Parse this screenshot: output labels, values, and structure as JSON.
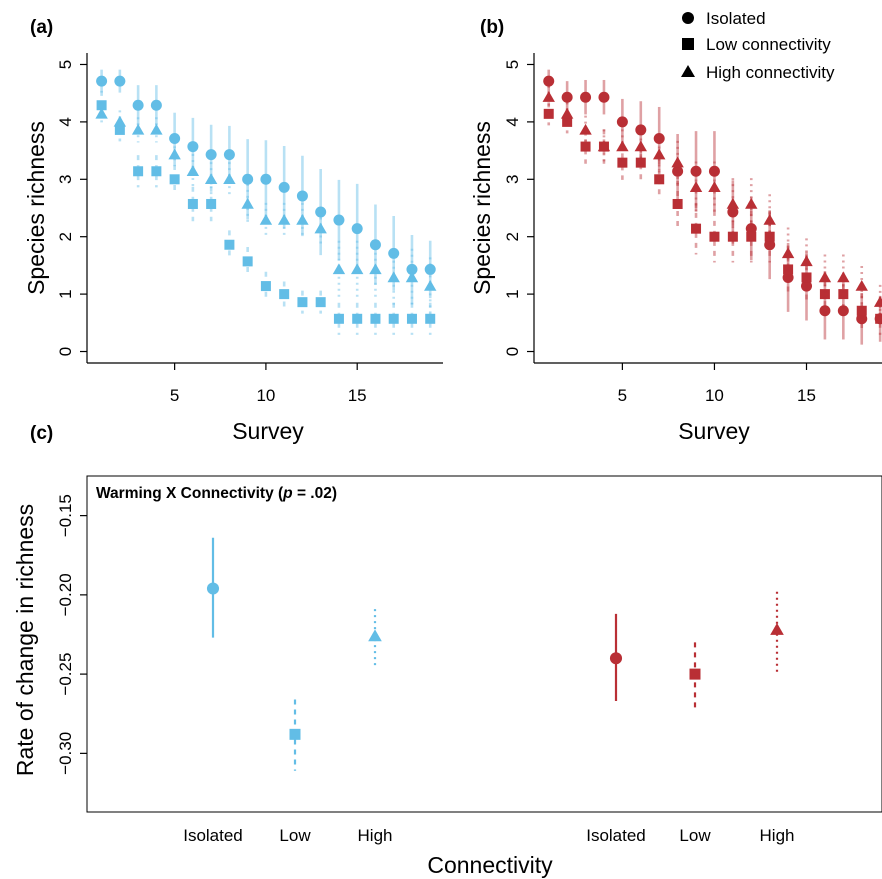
{
  "colors": {
    "ambient": "#62bde6",
    "warming": "#b92f35"
  },
  "legend": [
    {
      "label": "Isolated",
      "marker": "circle"
    },
    {
      "label": "Low connectivity",
      "marker": "square"
    },
    {
      "label": "High connectivity",
      "marker": "triangle"
    }
  ],
  "chart_data": [
    {
      "panel": "(a)",
      "type": "scatter",
      "xlabel": "Survey",
      "ylabel": "Species richness",
      "xticks": [
        5,
        10,
        15
      ],
      "yticks": [
        0,
        1,
        2,
        3,
        4,
        5
      ],
      "xlim": [
        0.2,
        19.7
      ],
      "ylim": [
        -0.2,
        5.2
      ],
      "series": [
        {
          "name": "Isolated",
          "marker": "circle",
          "line": "solid",
          "x": [
            1,
            2,
            3,
            4,
            5,
            6,
            7,
            8,
            9,
            10,
            11,
            12,
            13,
            14,
            15,
            16,
            17,
            18,
            19
          ],
          "y": [
            4.71,
            4.71,
            4.29,
            4.29,
            3.71,
            3.57,
            3.43,
            3.43,
            3.0,
            3.0,
            2.86,
            2.71,
            2.43,
            2.29,
            2.14,
            1.86,
            1.71,
            1.43,
            1.43
          ],
          "err": [
            0.2,
            0.2,
            0.35,
            0.35,
            0.45,
            0.5,
            0.52,
            0.5,
            0.7,
            0.68,
            0.72,
            0.7,
            0.75,
            0.7,
            0.78,
            0.7,
            0.65,
            0.6,
            0.5
          ]
        },
        {
          "name": "Low connectivity",
          "marker": "square",
          "line": "dashed",
          "x": [
            1,
            2,
            3,
            4,
            5,
            6,
            7,
            8,
            9,
            10,
            11,
            12,
            13,
            14,
            15,
            16,
            17,
            18,
            19
          ],
          "y": [
            4.29,
            3.86,
            3.14,
            3.14,
            3.0,
            2.57,
            2.57,
            1.86,
            1.57,
            1.14,
            1.0,
            0.86,
            0.86,
            0.57,
            0.57,
            0.57,
            0.57,
            0.57,
            0.57
          ],
          "err": [
            0.25,
            0.2,
            0.28,
            0.28,
            0.25,
            0.3,
            0.3,
            0.25,
            0.25,
            0.25,
            0.22,
            0.2,
            0.2,
            0.28,
            0.28,
            0.28,
            0.28,
            0.28,
            0.28
          ]
        },
        {
          "name": "High connectivity",
          "marker": "triangle",
          "line": "dotted",
          "x": [
            1,
            2,
            3,
            4,
            5,
            6,
            7,
            8,
            9,
            10,
            11,
            12,
            13,
            14,
            15,
            16,
            17,
            18,
            19
          ],
          "y": [
            4.14,
            4.0,
            3.86,
            3.86,
            3.43,
            3.14,
            3.0,
            3.0,
            2.57,
            2.29,
            2.29,
            2.29,
            2.14,
            1.43,
            1.43,
            1.43,
            1.29,
            1.29,
            1.14
          ],
          "err": [
            0.2,
            0.2,
            0.22,
            0.22,
            0.25,
            0.3,
            0.3,
            0.3,
            0.35,
            0.3,
            0.3,
            0.3,
            0.3,
            0.5,
            0.5,
            0.5,
            0.5,
            0.5,
            0.5
          ]
        }
      ]
    },
    {
      "panel": "(b)",
      "type": "scatter",
      "xlabel": "Survey",
      "ylabel": "Species richness",
      "xticks": [
        5,
        10,
        15
      ],
      "yticks": [
        0,
        1,
        2,
        3,
        4,
        5
      ],
      "xlim": [
        0.2,
        19.1
      ],
      "ylim": [
        -0.2,
        5.2
      ],
      "series": [
        {
          "name": "Isolated",
          "marker": "circle",
          "line": "solid",
          "x": [
            1,
            2,
            3,
            4,
            5,
            6,
            7,
            8,
            9,
            10,
            11,
            12,
            13,
            14,
            15,
            16,
            17,
            18,
            19
          ],
          "y": [
            4.71,
            4.43,
            4.43,
            4.43,
            4.0,
            3.86,
            3.71,
            3.14,
            3.14,
            3.14,
            2.43,
            2.14,
            1.86,
            1.29,
            1.14,
            0.71,
            0.71,
            0.57,
            0.57
          ],
          "err": [
            0.2,
            0.28,
            0.3,
            0.3,
            0.4,
            0.5,
            0.55,
            0.65,
            0.7,
            0.7,
            0.55,
            0.55,
            0.6,
            0.6,
            0.6,
            0.5,
            0.5,
            0.45,
            0.4
          ]
        },
        {
          "name": "Low connectivity",
          "marker": "square",
          "line": "dashed",
          "x": [
            1,
            2,
            3,
            4,
            5,
            6,
            7,
            8,
            9,
            10,
            11,
            12,
            13,
            14,
            15,
            16,
            17,
            18,
            19
          ],
          "y": [
            4.14,
            4.0,
            3.57,
            3.57,
            3.29,
            3.29,
            3.0,
            2.57,
            2.14,
            2.0,
            2.0,
            2.0,
            2.0,
            1.43,
            1.29,
            1.0,
            1.0,
            0.71,
            0.57
          ],
          "err": [
            0.2,
            0.2,
            0.3,
            0.3,
            0.3,
            0.32,
            0.35,
            0.4,
            0.45,
            0.45,
            0.45,
            0.45,
            0.45,
            0.4,
            0.4,
            0.4,
            0.35,
            0.3,
            0.28
          ]
        },
        {
          "name": "High connectivity",
          "marker": "triangle",
          "line": "dotted",
          "x": [
            1,
            2,
            3,
            4,
            5,
            6,
            7,
            8,
            9,
            10,
            11,
            12,
            13,
            14,
            15,
            16,
            17,
            18,
            19
          ],
          "y": [
            4.43,
            4.14,
            3.86,
            3.57,
            3.57,
            3.57,
            3.43,
            3.29,
            2.86,
            2.86,
            2.57,
            2.57,
            2.29,
            1.71,
            1.57,
            1.29,
            1.29,
            1.14,
            0.86
          ],
          "err": [
            0.2,
            0.2,
            0.25,
            0.3,
            0.3,
            0.35,
            0.35,
            0.38,
            0.45,
            0.45,
            0.45,
            0.45,
            0.45,
            0.45,
            0.4,
            0.4,
            0.4,
            0.35,
            0.3
          ]
        }
      ]
    },
    {
      "panel": "(c)",
      "type": "scatter",
      "xlabel": "Connectivity",
      "ylabel": "Rate of change in richness",
      "annotation": {
        "prefix": "Warming X Connectivity (",
        "italic": "p",
        "suffix": " = .02)"
      },
      "yticks": [
        -0.3,
        -0.25,
        -0.2,
        -0.15
      ],
      "ytick_labels": [
        "−0.30",
        "−0.25",
        "−0.20",
        "−0.15"
      ],
      "ylim": [
        -0.337,
        -0.125
      ],
      "categories": [
        "Isolated",
        "Low",
        "High",
        "Isolated",
        "Low",
        "High"
      ],
      "points": [
        {
          "category": "Isolated",
          "treatment": "ambient",
          "marker": "circle",
          "line": "solid",
          "y": -0.196,
          "lo": -0.227,
          "hi": -0.164
        },
        {
          "category": "Low",
          "treatment": "ambient",
          "marker": "square",
          "line": "dashed",
          "y": -0.288,
          "lo": -0.311,
          "hi": -0.266
        },
        {
          "category": "High",
          "treatment": "ambient",
          "marker": "triangle",
          "line": "dotted",
          "y": -0.226,
          "lo": -0.245,
          "hi": -0.209
        },
        {
          "category": "Isolated",
          "treatment": "warming",
          "marker": "circle",
          "line": "solid",
          "y": -0.24,
          "lo": -0.267,
          "hi": -0.212
        },
        {
          "category": "Low",
          "treatment": "warming",
          "marker": "square",
          "line": "dashed",
          "y": -0.25,
          "lo": -0.274,
          "hi": -0.23
        },
        {
          "category": "High",
          "treatment": "warming",
          "marker": "triangle",
          "line": "dotted",
          "y": -0.222,
          "lo": -0.249,
          "hi": -0.198
        }
      ]
    }
  ]
}
